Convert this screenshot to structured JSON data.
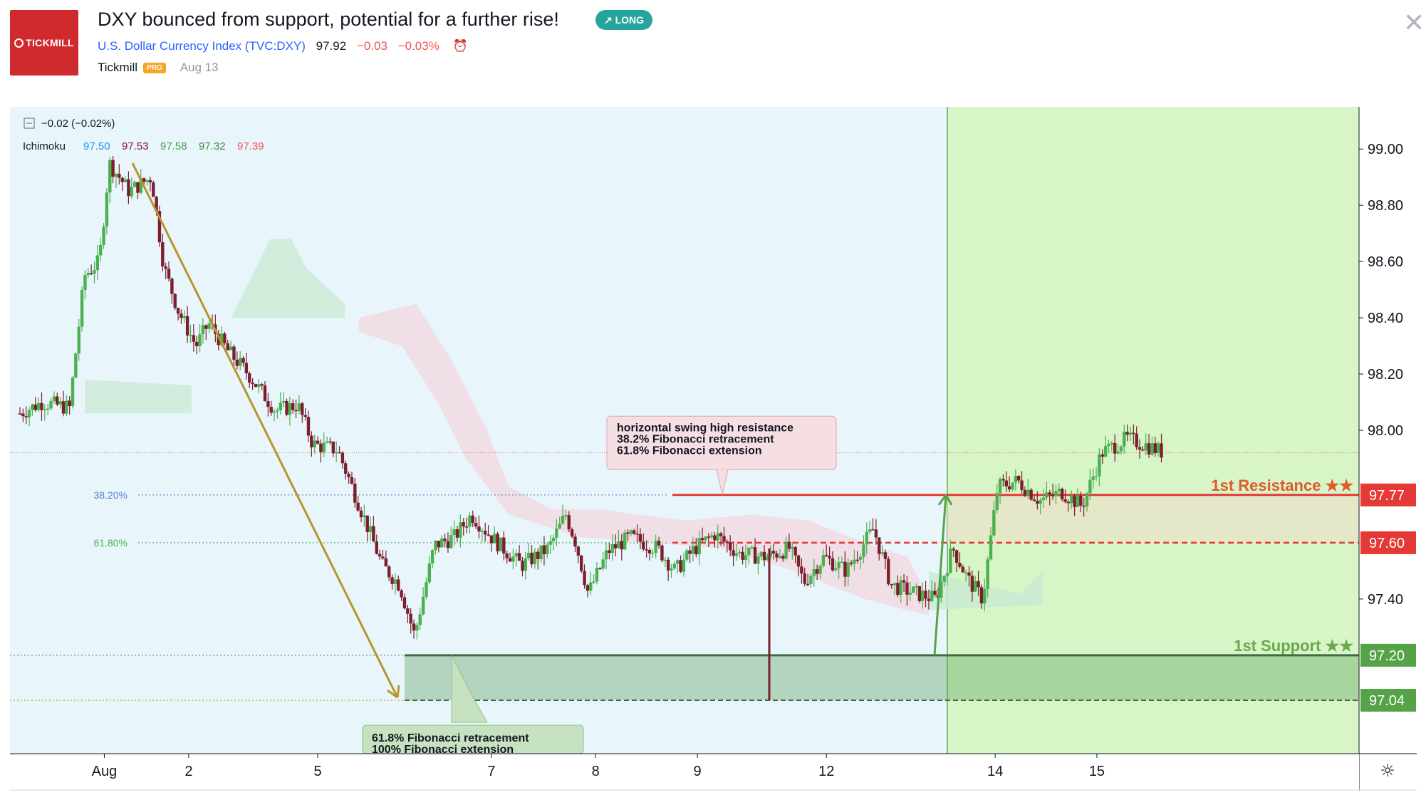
{
  "header": {
    "logo_text": "TICKMILL",
    "title": "DXY bounced from support, potential for a further rise!",
    "badge": "↗ LONG",
    "symbol_name": "U.S. Dollar Currency Index",
    "symbol_ticker": "(TVC:DXY)",
    "price": "97.92",
    "change": "−0.03",
    "change_pct": "−0.03%",
    "author": "Tickmill",
    "author_badge": "PRO",
    "date": "Aug 13"
  },
  "legend": {
    "change_text": "−0.02 (−0.02%)",
    "indicator_name": "Ichimoku",
    "indicator_values": [
      "97.50",
      "97.53",
      "97.58",
      "97.32",
      "97.39"
    ],
    "indicator_colors": [
      "#2196f3",
      "#880e4f",
      "#43a047",
      "#388e3c",
      "#ef5350"
    ]
  },
  "colors": {
    "up_candle": "#4caf50",
    "down_candle": "#7a1f2b",
    "resistance": "#e53935",
    "support": "#6aa84f",
    "forecast_bg": "#d7f5c6",
    "chart_bg": "#e8f6fc",
    "arrow": "#b8942c"
  },
  "chart_data": {
    "type": "candlestick",
    "symbol": "TVC:DXY",
    "ylim": [
      96.85,
      99.15
    ],
    "y_ticks": [
      99.0,
      98.8,
      98.6,
      98.4,
      98.2,
      98.0,
      97.4
    ],
    "y_tick_labels": [
      "99.00",
      "98.80",
      "98.60",
      "98.40",
      "98.20",
      "98.00",
      "97.40"
    ],
    "x_tick_labels": [
      "Aug",
      "2",
      "5",
      "7",
      "8",
      "9",
      "12",
      "14",
      "15"
    ],
    "price_path": [
      [
        0.0,
        98.06
      ],
      [
        0.9,
        98.1
      ],
      [
        2.0,
        98.08
      ],
      [
        2.6,
        98.55
      ],
      [
        3.2,
        98.6
      ],
      [
        3.6,
        98.95
      ],
      [
        4.4,
        98.85
      ],
      [
        5.3,
        98.9
      ],
      [
        5.8,
        98.58
      ],
      [
        6.4,
        98.42
      ],
      [
        7.1,
        98.3
      ],
      [
        7.6,
        98.38
      ],
      [
        8.4,
        98.28
      ],
      [
        9.2,
        98.2
      ],
      [
        10.3,
        98.07
      ],
      [
        11.2,
        98.09
      ],
      [
        11.8,
        97.95
      ],
      [
        12.8,
        97.93
      ],
      [
        13.6,
        97.75
      ],
      [
        14.6,
        97.52
      ],
      [
        15.3,
        97.45
      ],
      [
        15.9,
        97.27
      ],
      [
        16.7,
        97.59
      ],
      [
        17.5,
        97.62
      ],
      [
        18.2,
        97.7
      ],
      [
        19.0,
        97.62
      ],
      [
        20.2,
        97.52
      ],
      [
        21.3,
        97.58
      ],
      [
        22.0,
        97.7
      ],
      [
        22.4,
        97.6
      ],
      [
        22.9,
        97.42
      ],
      [
        23.7,
        97.57
      ],
      [
        24.6,
        97.62
      ],
      [
        25.7,
        97.58
      ],
      [
        26.4,
        97.5
      ],
      [
        27.2,
        97.58
      ],
      [
        28.0,
        97.63
      ],
      [
        29.0,
        97.56
      ],
      [
        30.1,
        97.55
      ],
      [
        31.0,
        97.58
      ],
      [
        31.6,
        97.46
      ],
      [
        32.4,
        97.55
      ],
      [
        33.3,
        97.5
      ],
      [
        34.4,
        97.65
      ],
      [
        35.1,
        97.45
      ],
      [
        36.1,
        97.42
      ],
      [
        36.9,
        97.4
      ],
      [
        37.6,
        97.58
      ],
      [
        38.2,
        97.47
      ],
      [
        38.8,
        97.4
      ],
      [
        39.4,
        97.8
      ],
      [
        40.2,
        97.82
      ],
      [
        41.1,
        97.75
      ],
      [
        42.0,
        97.78
      ],
      [
        42.8,
        97.73
      ],
      [
        43.6,
        97.92
      ],
      [
        44.6,
        97.97
      ],
      [
        45.3,
        97.95
      ],
      [
        46.1,
        97.92
      ]
    ],
    "last_price": 97.92,
    "levels": [
      {
        "name": "1st Resistance ★★",
        "price": 97.77,
        "label": "97.77"
      },
      {
        "name": "",
        "price": 97.6,
        "label": "97.60"
      },
      {
        "name": "1st Support ★★",
        "price": 97.2,
        "label": "97.20"
      },
      {
        "name": "",
        "price": 97.04,
        "label": "97.04"
      }
    ],
    "fib_levels": [
      {
        "label": "38.20%",
        "price": 97.77
      },
      {
        "label": "61.80%",
        "price": 97.6
      }
    ],
    "annotations": [
      {
        "lines": [
          "horizontal swing high resistance",
          "38.2% Fibonacci retracement",
          "61.8% Fibonacci extension"
        ]
      },
      {
        "lines": [
          "61.8% Fibonacci retracement",
          "100% Fibonacci extension"
        ]
      }
    ]
  }
}
